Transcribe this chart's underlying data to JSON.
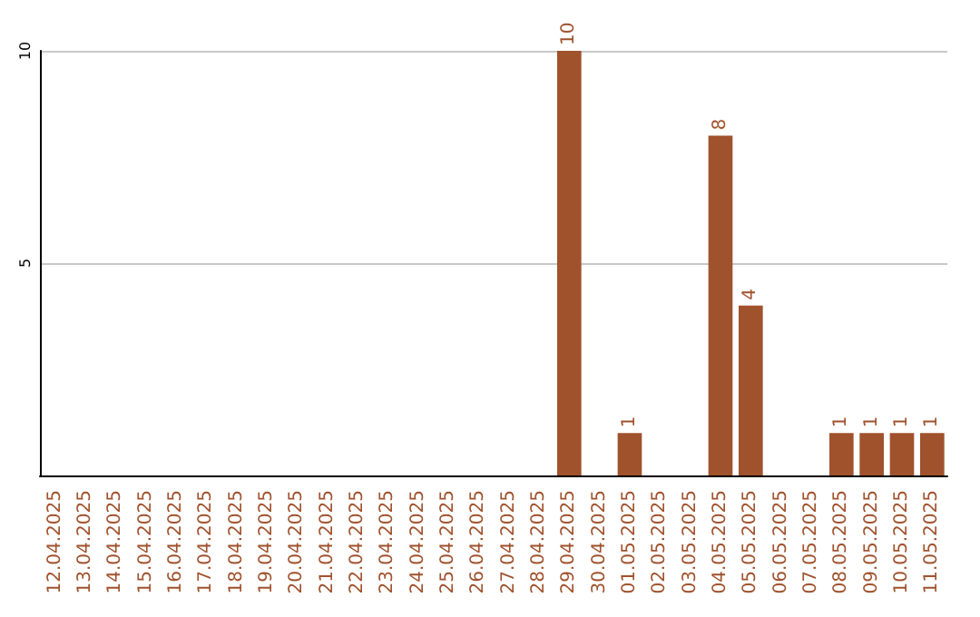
{
  "chart_data": {
    "type": "bar",
    "categories": [
      "12.04.2025",
      "13.04.2025",
      "14.04.2025",
      "15.04.2025",
      "16.04.2025",
      "17.04.2025",
      "18.04.2025",
      "19.04.2025",
      "20.04.2025",
      "21.04.2025",
      "22.04.2025",
      "23.04.2025",
      "24.04.2025",
      "25.04.2025",
      "26.04.2025",
      "27.04.2025",
      "28.04.2025",
      "29.04.2025",
      "30.04.2025",
      "01.05.2025",
      "02.05.2025",
      "03.05.2025",
      "04.05.2025",
      "05.05.2025",
      "06.05.2025",
      "07.05.2025",
      "08.05.2025",
      "09.05.2025",
      "10.05.2025",
      "11.05.2025"
    ],
    "values": [
      0,
      0,
      0,
      0,
      0,
      0,
      0,
      0,
      0,
      0,
      0,
      0,
      0,
      0,
      0,
      0,
      0,
      10,
      0,
      1,
      0,
      0,
      8,
      4,
      0,
      0,
      1,
      1,
      1,
      1
    ],
    "value_labels": [
      null,
      null,
      null,
      null,
      null,
      null,
      null,
      null,
      null,
      null,
      null,
      null,
      null,
      null,
      null,
      null,
      null,
      "10",
      null,
      "1",
      null,
      null,
      "8",
      "4",
      null,
      null,
      "1",
      "1",
      "1",
      "1"
    ],
    "color": "#a0522d",
    "ylim": [
      0,
      10
    ],
    "yticks": [
      5,
      10
    ],
    "grid": "y"
  }
}
